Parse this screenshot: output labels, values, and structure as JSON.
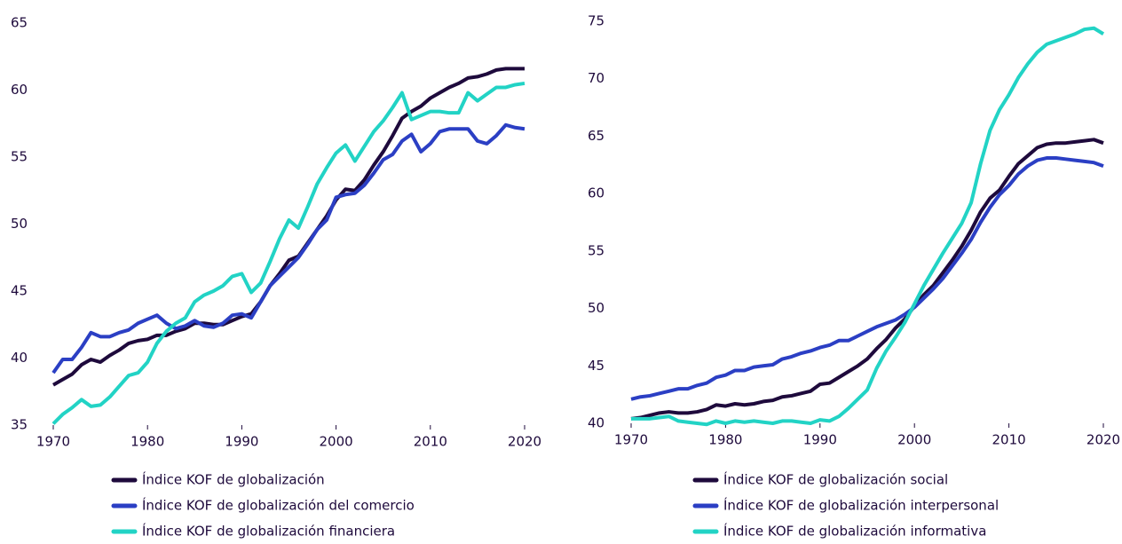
{
  "chart_data": [
    {
      "type": "line",
      "x": [
        1970,
        1971,
        1972,
        1973,
        1974,
        1975,
        1976,
        1977,
        1978,
        1979,
        1980,
        1981,
        1982,
        1983,
        1984,
        1985,
        1986,
        1987,
        1988,
        1989,
        1990,
        1991,
        1992,
        1993,
        1994,
        1995,
        1996,
        1997,
        1998,
        1999,
        2000,
        2001,
        2002,
        2003,
        2004,
        2005,
        2006,
        2007,
        2008,
        2009,
        2010,
        2011,
        2012,
        2013,
        2014,
        2015,
        2016,
        2017,
        2018,
        2019,
        2020
      ],
      "xlim": [
        1970,
        2020
      ],
      "xticks": [
        1970,
        1980,
        1990,
        2000,
        2010,
        2020
      ],
      "ylim": [
        35,
        65
      ],
      "yticks": [
        35,
        40,
        45,
        50,
        55,
        60,
        65
      ],
      "series": [
        {
          "name": "Índice KOF de globalización",
          "color": "#1e0a3c",
          "values": [
            38.0,
            38.4,
            38.8,
            39.5,
            39.9,
            39.7,
            40.2,
            40.6,
            41.1,
            41.3,
            41.4,
            41.7,
            41.7,
            42.0,
            42.2,
            42.6,
            42.6,
            42.5,
            42.5,
            42.8,
            43.1,
            43.3,
            44.2,
            45.4,
            46.3,
            47.3,
            47.6,
            48.6,
            49.6,
            50.6,
            51.8,
            52.6,
            52.5,
            53.3,
            54.4,
            55.4,
            56.6,
            57.9,
            58.4,
            58.8,
            59.4,
            59.8,
            60.2,
            60.5,
            60.9,
            61.0,
            61.2,
            61.5,
            61.6,
            61.6,
            61.6
          ]
        },
        {
          "name": "Índice KOF de globalización del comercio",
          "color": "#2b3fc4",
          "values": [
            38.9,
            39.9,
            39.9,
            40.8,
            41.9,
            41.6,
            41.6,
            41.9,
            42.1,
            42.6,
            42.9,
            43.2,
            42.6,
            42.2,
            42.4,
            42.8,
            42.4,
            42.3,
            42.6,
            43.2,
            43.3,
            43.0,
            44.2,
            45.4,
            46.1,
            46.8,
            47.5,
            48.5,
            49.6,
            50.3,
            52.0,
            52.2,
            52.3,
            52.9,
            53.8,
            54.8,
            55.2,
            56.2,
            56.7,
            55.4,
            56.0,
            56.9,
            57.1,
            57.1,
            57.1,
            56.2,
            56.0,
            56.6,
            57.4,
            57.2,
            57.1
          ]
        },
        {
          "name": "Índice KOF de globalización financiera",
          "color": "#22d3c5",
          "values": [
            35.1,
            35.8,
            36.3,
            36.9,
            36.4,
            36.5,
            37.1,
            37.9,
            38.7,
            38.9,
            39.7,
            41.1,
            42.0,
            42.6,
            43.0,
            44.2,
            44.7,
            45.0,
            45.4,
            46.1,
            46.3,
            44.9,
            45.6,
            47.2,
            48.9,
            50.3,
            49.7,
            51.3,
            53.0,
            54.2,
            55.3,
            55.9,
            54.7,
            55.8,
            56.9,
            57.7,
            58.7,
            59.8,
            57.8,
            58.1,
            58.4,
            58.4,
            58.3,
            58.3,
            59.8,
            59.2,
            59.7,
            60.2,
            60.2,
            60.4,
            60.5
          ]
        }
      ]
    },
    {
      "type": "line",
      "x": [
        1970,
        1971,
        1972,
        1973,
        1974,
        1975,
        1976,
        1977,
        1978,
        1979,
        1980,
        1981,
        1982,
        1983,
        1984,
        1985,
        1986,
        1987,
        1988,
        1989,
        1990,
        1991,
        1992,
        1993,
        1994,
        1995,
        1996,
        1997,
        1998,
        1999,
        2000,
        2001,
        2002,
        2003,
        2004,
        2005,
        2006,
        2007,
        2008,
        2009,
        2010,
        2011,
        2012,
        2013,
        2014,
        2015,
        2016,
        2017,
        2018,
        2019,
        2020
      ],
      "xlim": [
        1970,
        2020
      ],
      "xticks": [
        1970,
        1980,
        1990,
        2000,
        2010,
        2020
      ],
      "ylim": [
        40,
        75
      ],
      "yticks": [
        40,
        45,
        50,
        55,
        60,
        65,
        70,
        75
      ],
      "series": [
        {
          "name": "Índice KOF de globalización social",
          "color": "#1e0a3c",
          "values": [
            40.4,
            40.5,
            40.7,
            40.9,
            41.0,
            40.9,
            40.9,
            41.0,
            41.2,
            41.6,
            41.5,
            41.7,
            41.6,
            41.7,
            41.9,
            42.0,
            42.3,
            42.4,
            42.6,
            42.8,
            43.4,
            43.5,
            44.0,
            44.5,
            45.0,
            45.6,
            46.5,
            47.3,
            48.3,
            49.1,
            50.2,
            51.2,
            52.0,
            53.1,
            54.2,
            55.4,
            56.8,
            58.4,
            59.6,
            60.3,
            61.5,
            62.6,
            63.3,
            64.0,
            64.3,
            64.4,
            64.4,
            64.5,
            64.6,
            64.7,
            64.4
          ]
        },
        {
          "name": "Índice KOF de globalización interpersonal",
          "color": "#2b3fc4",
          "values": [
            42.1,
            42.3,
            42.4,
            42.6,
            42.8,
            43.0,
            43.0,
            43.3,
            43.5,
            44.0,
            44.2,
            44.6,
            44.6,
            44.9,
            45.0,
            45.1,
            45.6,
            45.8,
            46.1,
            46.3,
            46.6,
            46.8,
            47.2,
            47.2,
            47.6,
            48.0,
            48.4,
            48.7,
            49.0,
            49.5,
            50.1,
            50.9,
            51.7,
            52.6,
            53.7,
            54.8,
            56.0,
            57.5,
            58.8,
            59.9,
            60.7,
            61.7,
            62.4,
            62.9,
            63.1,
            63.1,
            63.0,
            62.9,
            62.8,
            62.7,
            62.4
          ]
        },
        {
          "name": "Índice KOF de globalización informativa",
          "color": "#22d3c5",
          "values": [
            40.4,
            40.4,
            40.4,
            40.5,
            40.6,
            40.2,
            40.1,
            40.0,
            39.9,
            40.2,
            40.0,
            40.2,
            40.1,
            40.2,
            40.1,
            40.0,
            40.2,
            40.2,
            40.1,
            40.0,
            40.3,
            40.2,
            40.6,
            41.3,
            42.1,
            42.9,
            44.8,
            46.3,
            47.5,
            48.8,
            50.4,
            52.0,
            53.4,
            54.8,
            56.1,
            57.4,
            59.2,
            62.6,
            65.5,
            67.3,
            68.6,
            70.1,
            71.3,
            72.3,
            73.0,
            73.3,
            73.6,
            73.9,
            74.3,
            74.4,
            73.9
          ]
        }
      ]
    }
  ]
}
